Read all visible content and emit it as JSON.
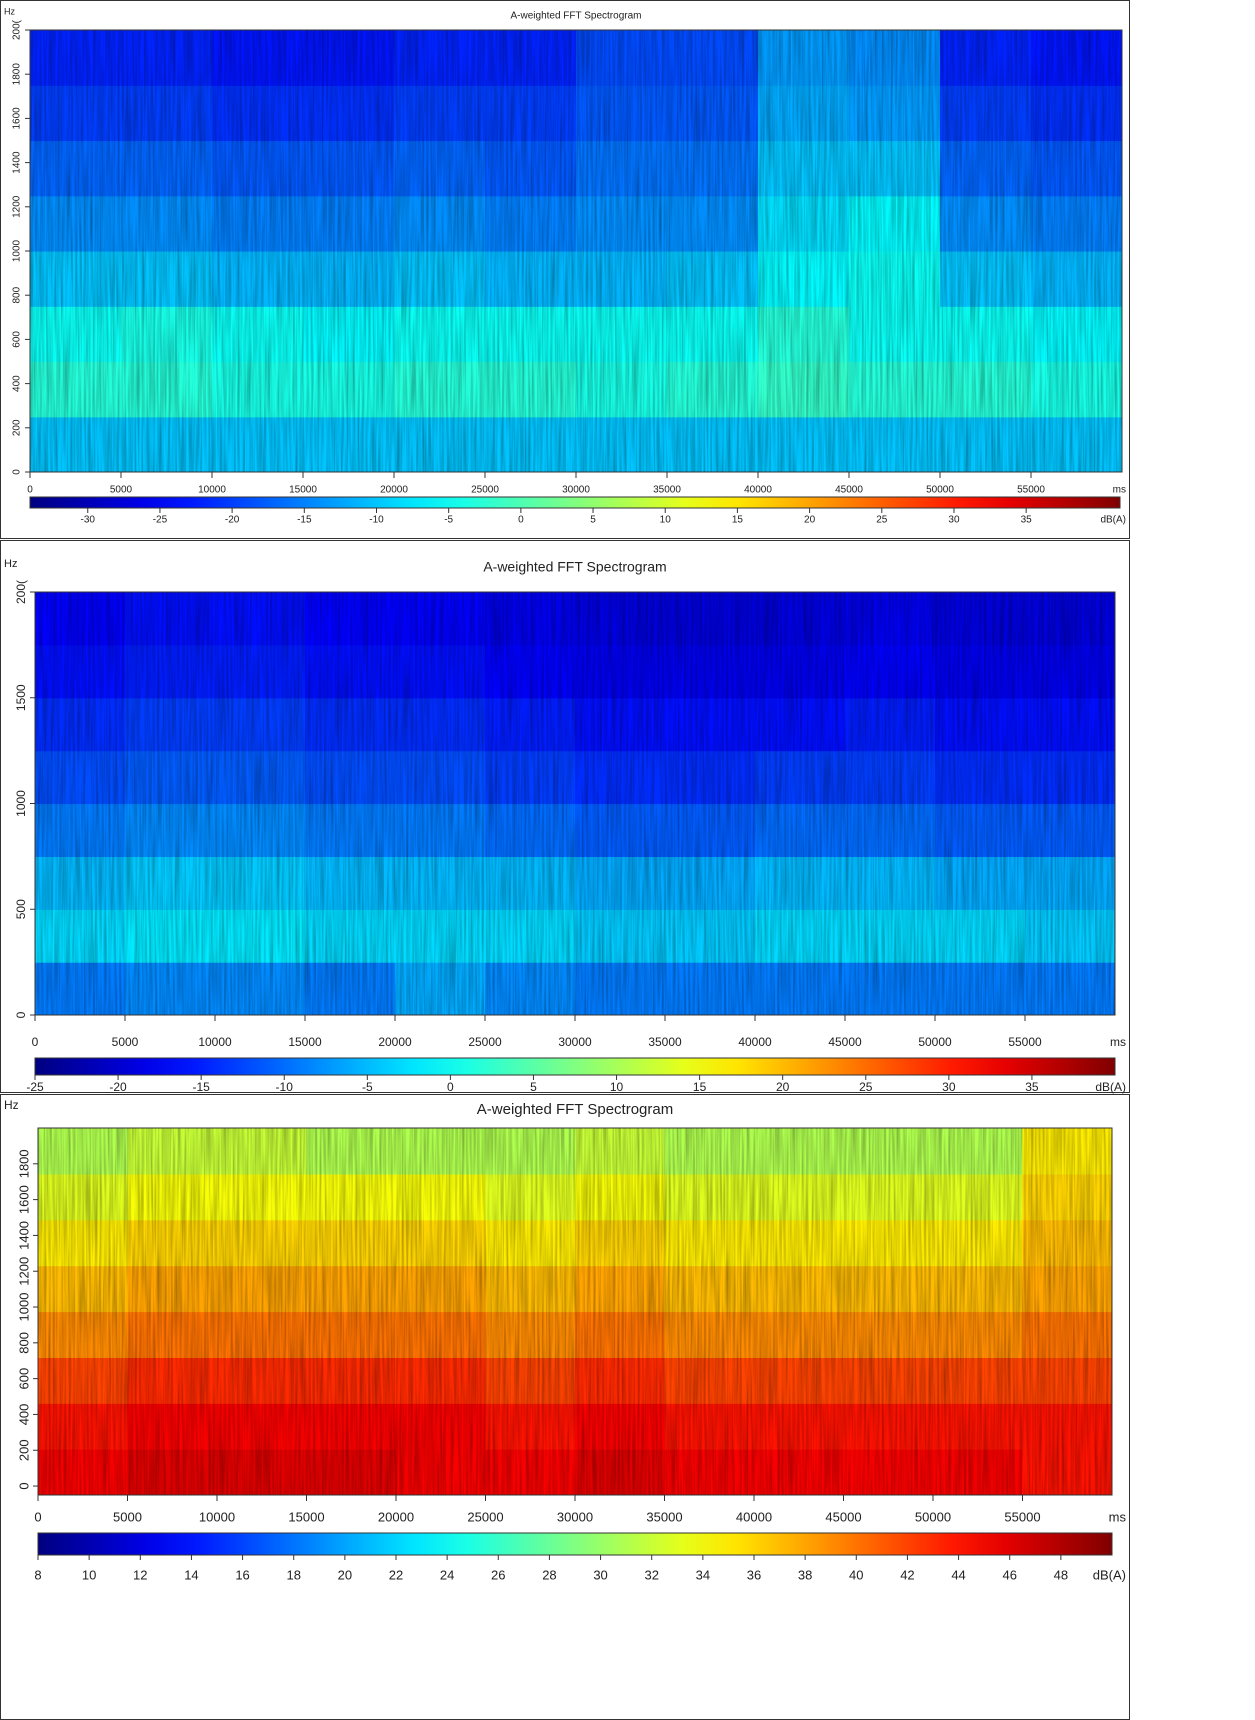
{
  "chart_data": [
    {
      "type": "spectrogram",
      "title": "A-weighted FFT Spectrogram",
      "y_label": "Hz",
      "x_label": "ms",
      "colorbar_label": "dB(A)",
      "colormap": "jet",
      "xlim": [
        0,
        60000
      ],
      "xticks": [
        0,
        5000,
        10000,
        15000,
        20000,
        25000,
        30000,
        35000,
        40000,
        45000,
        50000,
        55000
      ],
      "ylim": [
        0,
        2000
      ],
      "yticks": [
        0,
        200,
        400,
        600,
        800,
        1000,
        1200,
        1400,
        1600,
        1800,
        {
          "value": 2000,
          "label": "200("
        }
      ],
      "clim": [
        -34,
        41.5
      ],
      "cticks": [
        -30,
        -25,
        -20,
        -15,
        -10,
        -5,
        0,
        5,
        10,
        15,
        20,
        25,
        30,
        35
      ],
      "z": [
        [
          -10,
          -10,
          -10,
          -10,
          -10,
          -10,
          -10,
          -10,
          -10,
          -10,
          -10,
          -10
        ],
        [
          -3,
          -3,
          -4,
          -4,
          -3,
          -3,
          -4,
          -3,
          -2,
          -3,
          -3,
          -4
        ],
        [
          -5,
          -4,
          -5,
          -6,
          -5,
          -5,
          -5,
          -5,
          -3,
          -5,
          -5,
          -6
        ],
        [
          -10,
          -10,
          -11,
          -11,
          -10,
          -11,
          -11,
          -10,
          -6,
          -5,
          -10,
          -11
        ],
        [
          -14,
          -14,
          -15,
          -15,
          -14,
          -15,
          -14,
          -14,
          -8,
          -6,
          -14,
          -15
        ],
        [
          -17,
          -17,
          -18,
          -18,
          -17,
          -18,
          -16,
          -16,
          -10,
          -10,
          -17,
          -18
        ],
        [
          -20,
          -20,
          -21,
          -21,
          -20,
          -20,
          -18,
          -18,
          -12,
          -13,
          -20,
          -21
        ],
        [
          -22,
          -22,
          -23,
          -23,
          -22,
          -22,
          -19,
          -19,
          -13,
          -14,
          -22,
          -23
        ]
      ]
    },
    {
      "type": "spectrogram",
      "title": "A-weighted FFT Spectrogram",
      "y_label": "Hz",
      "x_label": "ms",
      "colorbar_label": "dB(A)",
      "colormap": "jet",
      "xlim": [
        0,
        60000
      ],
      "xticks": [
        0,
        5000,
        10000,
        15000,
        20000,
        25000,
        30000,
        35000,
        40000,
        45000,
        50000,
        55000
      ],
      "ylim": [
        0,
        2000
      ],
      "yticks": [
        0,
        500,
        1000,
        1500,
        {
          "value": 2000,
          "label": "200("
        }
      ],
      "clim": [
        -25,
        40
      ],
      "cticks": [
        -25,
        -20,
        -15,
        -10,
        -5,
        0,
        5,
        10,
        15,
        20,
        25,
        30,
        35
      ],
      "z": [
        [
          -9,
          -8,
          -8,
          -9,
          -6,
          -8,
          -9,
          -9,
          -9,
          -9,
          -9,
          -9
        ],
        [
          -3,
          -2,
          -2,
          -3,
          -3,
          -3,
          -4,
          -4,
          -3,
          -3,
          -3,
          -4
        ],
        [
          -5,
          -4,
          -4,
          -5,
          -5,
          -5,
          -6,
          -6,
          -5,
          -5,
          -6,
          -6
        ],
        [
          -9,
          -8,
          -8,
          -9,
          -9,
          -10,
          -11,
          -11,
          -10,
          -10,
          -11,
          -11
        ],
        [
          -12,
          -11,
          -11,
          -12,
          -12,
          -13,
          -14,
          -14,
          -13,
          -13,
          -14,
          -14
        ],
        [
          -14,
          -13,
          -13,
          -14,
          -14,
          -15,
          -16,
          -16,
          -16,
          -15,
          -16,
          -16
        ],
        [
          -16,
          -15,
          -15,
          -16,
          -16,
          -17,
          -18,
          -18,
          -18,
          -17,
          -18,
          -18
        ],
        [
          -17,
          -16,
          -16,
          -17,
          -17,
          -18,
          -19,
          -19,
          -19,
          -18,
          -19,
          -19
        ]
      ]
    },
    {
      "type": "spectrogram",
      "title": "A-weighted FFT Spectrogram",
      "y_label": "Hz",
      "x_label": "ms",
      "colorbar_label": "dB(A)",
      "colormap": "jet",
      "xlim": [
        0,
        60000
      ],
      "xticks": [
        0,
        5000,
        10000,
        15000,
        20000,
        25000,
        30000,
        35000,
        40000,
        45000,
        50000,
        55000
      ],
      "ylim": [
        -50,
        2000
      ],
      "yticks": [
        0,
        200,
        400,
        600,
        800,
        1000,
        1200,
        1400,
        1600,
        1800
      ],
      "clim": [
        8,
        50
      ],
      "cticks": [
        8,
        10,
        12,
        14,
        16,
        18,
        20,
        22,
        24,
        26,
        28,
        30,
        32,
        34,
        36,
        38,
        40,
        42,
        44,
        46,
        48
      ],
      "z": [
        [
          45,
          46,
          46,
          46,
          45,
          45,
          46,
          45,
          45,
          45,
          45,
          44
        ],
        [
          44,
          45,
          45,
          45,
          45,
          44,
          45,
          44,
          44,
          44,
          44,
          44
        ],
        [
          42,
          43,
          43,
          43,
          43,
          42,
          43,
          42,
          42,
          42,
          42,
          42
        ],
        [
          39,
          40,
          40,
          40,
          40,
          39,
          40,
          39,
          39,
          39,
          39,
          40
        ],
        [
          37,
          38,
          38,
          38,
          38,
          37,
          38,
          37,
          37,
          37,
          37,
          38
        ],
        [
          35,
          36,
          36,
          36,
          36,
          35,
          36,
          35,
          35,
          35,
          35,
          37
        ],
        [
          33,
          34,
          34,
          34,
          34,
          33,
          34,
          33,
          33,
          33,
          33,
          36
        ],
        [
          31,
          32,
          32,
          31,
          31,
          31,
          32,
          31,
          31,
          31,
          31,
          35
        ]
      ]
    }
  ]
}
